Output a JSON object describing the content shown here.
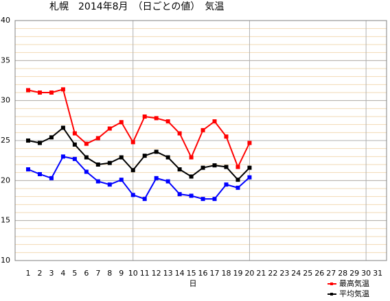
{
  "chart_data": {
    "type": "line",
    "title": "札幌　2014年8月　（日ごとの値）　気温",
    "x_label": "日",
    "categories": [
      "1",
      "2",
      "3",
      "4",
      "5",
      "6",
      "7",
      "8",
      "9",
      "10",
      "11",
      "12",
      "13",
      "14",
      "15",
      "16",
      "17",
      "18",
      "19",
      "20",
      "21",
      "22",
      "23",
      "24",
      "25",
      "26",
      "27",
      "28",
      "29",
      "30",
      "31"
    ],
    "series": [
      {
        "name": "最高気温",
        "color": "#ff0000",
        "values": [
          31.3,
          31.0,
          31.0,
          31.4,
          25.9,
          24.6,
          25.3,
          26.5,
          27.3,
          24.8,
          28.0,
          27.8,
          27.4,
          25.9,
          22.9,
          26.3,
          27.4,
          25.5,
          21.7,
          24.7,
          null,
          null,
          null,
          null,
          null,
          null,
          null,
          null,
          null,
          null,
          null
        ]
      },
      {
        "name": "平均気温",
        "color": "#000000",
        "values": [
          25.0,
          24.7,
          25.4,
          26.6,
          24.5,
          22.9,
          22.0,
          22.2,
          22.9,
          21.3,
          23.1,
          23.6,
          22.9,
          21.4,
          20.5,
          21.6,
          21.9,
          21.7,
          20.1,
          21.6,
          null,
          null,
          null,
          null,
          null,
          null,
          null,
          null,
          null,
          null,
          null
        ]
      },
      {
        "color": "#0000ff",
        "values": [
          21.4,
          20.8,
          20.3,
          23.0,
          22.7,
          21.1,
          19.9,
          19.5,
          20.1,
          18.2,
          17.7,
          20.3,
          19.9,
          18.3,
          18.1,
          17.7,
          17.7,
          19.5,
          19.1,
          20.4,
          null,
          null,
          null,
          null,
          null,
          null,
          null,
          null,
          null,
          null,
          null
        ]
      }
    ],
    "ylim": [
      10,
      40
    ],
    "yticks": [
      10,
      15,
      20,
      25,
      30,
      35,
      40
    ],
    "grid": true,
    "minor_grid_step": 1,
    "xgrid_step": 10,
    "legend": "bottom-right"
  }
}
